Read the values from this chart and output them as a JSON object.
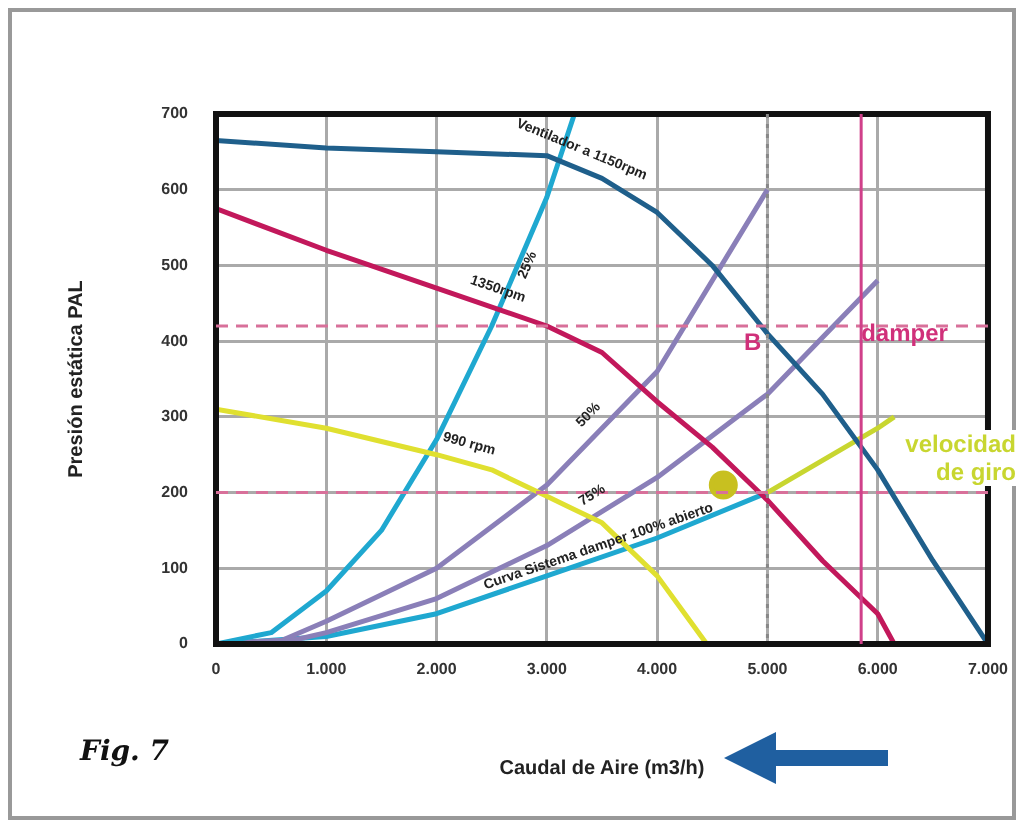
{
  "chart_data": {
    "type": "line",
    "xlabel": "Caudal de Aire (m3/h)",
    "ylabel": "Presión estática PAL",
    "xlim": [
      0,
      7000
    ],
    "ylim": [
      0,
      700
    ],
    "xticks": [
      0,
      {
        "value": 1000,
        "label": "1.000"
      },
      {
        "value": 2000,
        "label": "2.000"
      },
      {
        "value": 3000,
        "label": "3.000"
      },
      {
        "value": 4000,
        "label": "4.000"
      },
      {
        "value": 5000,
        "label": "5.000"
      },
      {
        "value": 6000,
        "label": "6.000"
      },
      {
        "value": 7000,
        "label": "7.000"
      }
    ],
    "yticks": [
      0,
      100,
      200,
      300,
      400,
      500,
      600,
      700
    ],
    "grid": true,
    "legend": false,
    "marker": "none",
    "line_style": "solid",
    "series": [
      {
        "name": "Ventilador a 1150rpm",
        "color": "#1f5f8b",
        "x": [
          0,
          1000,
          2000,
          3000,
          3500,
          4000,
          4500,
          5000,
          5500,
          6000,
          6500,
          7000
        ],
        "values": [
          665,
          655,
          650,
          645,
          615,
          570,
          500,
          410,
          330,
          230,
          110,
          0
        ]
      },
      {
        "name": "1350rpm",
        "color": "#c2185b",
        "x": [
          0,
          1000,
          2000,
          3000,
          3500,
          4000,
          4500,
          5000,
          5500,
          6000,
          6150
        ],
        "values": [
          575,
          520,
          470,
          420,
          385,
          320,
          260,
          190,
          110,
          40,
          0
        ]
      },
      {
        "name": "990 rpm",
        "color": "#e0e030",
        "x": [
          0,
          1000,
          2000,
          2500,
          3000,
          3500,
          4000,
          4300,
          4450
        ],
        "values": [
          310,
          285,
          250,
          230,
          195,
          160,
          90,
          30,
          0
        ]
      },
      {
        "name": "25%",
        "color": "#1fa8d0",
        "x": [
          0,
          500,
          1000,
          1500,
          2000,
          2500,
          3000,
          3250
        ],
        "values": [
          0,
          15,
          70,
          150,
          270,
          420,
          590,
          700
        ]
      },
      {
        "name": "50%",
        "color": "#8a7fb8",
        "x": [
          0,
          600,
          1000,
          2000,
          3000,
          4000,
          5000
        ],
        "values": [
          0,
          5,
          30,
          100,
          210,
          360,
          600
        ]
      },
      {
        "name": "75%",
        "color": "#8a7fb8",
        "x": [
          0,
          700,
          1000,
          2000,
          3000,
          4000,
          5000,
          6000
        ],
        "values": [
          0,
          5,
          15,
          60,
          130,
          220,
          330,
          480
        ]
      },
      {
        "name": "Curva Sistema damper 100% abierto",
        "color": "#1fa8d0",
        "x": [
          0,
          1000,
          2000,
          3000,
          4000,
          5000
        ],
        "values": [
          0,
          10,
          40,
          90,
          140,
          200
        ]
      },
      {
        "color": "#c8d630",
        "x": [
          5000,
          6000,
          6150
        ],
        "values": [
          200,
          285,
          300
        ]
      },
      {
        "type": "scatter",
        "marker": "circle",
        "color": "#c8c020",
        "x": [
          4600
        ],
        "values": [
          210
        ]
      }
    ],
    "ref_lines": [
      {
        "axis": "y",
        "value": 420,
        "color": "#d8709a",
        "line_style": "dashed"
      },
      {
        "axis": "y",
        "value": 200,
        "color": "#d8709a",
        "line_style": "dashed"
      },
      {
        "axis": "x",
        "value": 5000,
        "color": "#888888",
        "line_style": "dotted"
      },
      {
        "axis": "x",
        "value": 5850,
        "color": "#d0408a",
        "line_style": "solid"
      }
    ],
    "annotations": [
      "B",
      {
        "text": "damper",
        "x": 5850,
        "y": 400
      },
      "velocidad de giro",
      "Fig. 7"
    ]
  }
}
